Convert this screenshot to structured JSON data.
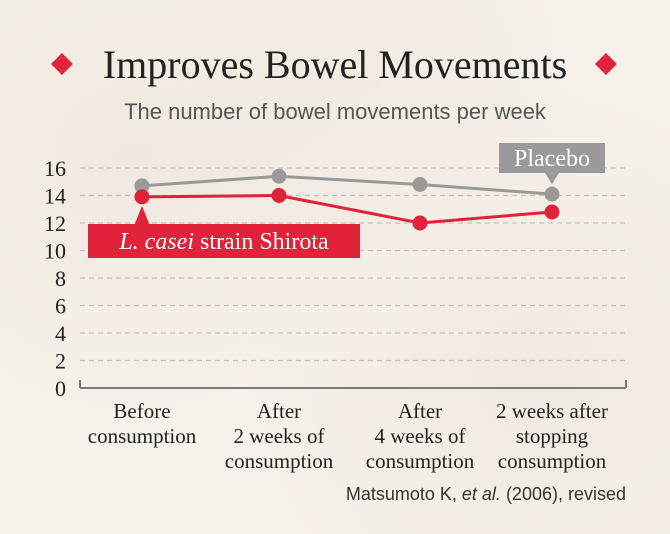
{
  "colors": {
    "accent": "#e0223a",
    "placebo": "#9a9a9a",
    "text": "#222222",
    "grid": "#c9bfb3"
  },
  "chart_data": {
    "type": "line",
    "title": "Improves Bowel Movements",
    "subtitle": "The number of bowel movements per week",
    "categories": [
      [
        "Before",
        "consumption"
      ],
      [
        "After",
        "2 weeks of",
        "consumption"
      ],
      [
        "After",
        "4 weeks of",
        "consumption"
      ],
      [
        "2 weeks after",
        "stopping",
        "consumption"
      ]
    ],
    "series": [
      {
        "name": "Placebo",
        "color": "#9a9a9a",
        "values": [
          14.7,
          15.4,
          14.8,
          14.1
        ]
      },
      {
        "name_parts": [
          {
            "text": "L. casei",
            "italic": true
          },
          {
            "text": " strain Shirota",
            "italic": false
          }
        ],
        "color": "#e0223a",
        "values": [
          13.9,
          14.0,
          12.0,
          12.8
        ]
      }
    ],
    "ylim": [
      0,
      16
    ],
    "yticks": [
      0,
      2,
      4,
      6,
      8,
      10,
      12,
      14,
      16
    ],
    "grid": true,
    "source_parts": [
      {
        "text": "Matsumoto K, ",
        "italic": false
      },
      {
        "text": "et al.",
        "italic": true
      },
      {
        "text": " (2006), revised",
        "italic": false
      }
    ]
  }
}
